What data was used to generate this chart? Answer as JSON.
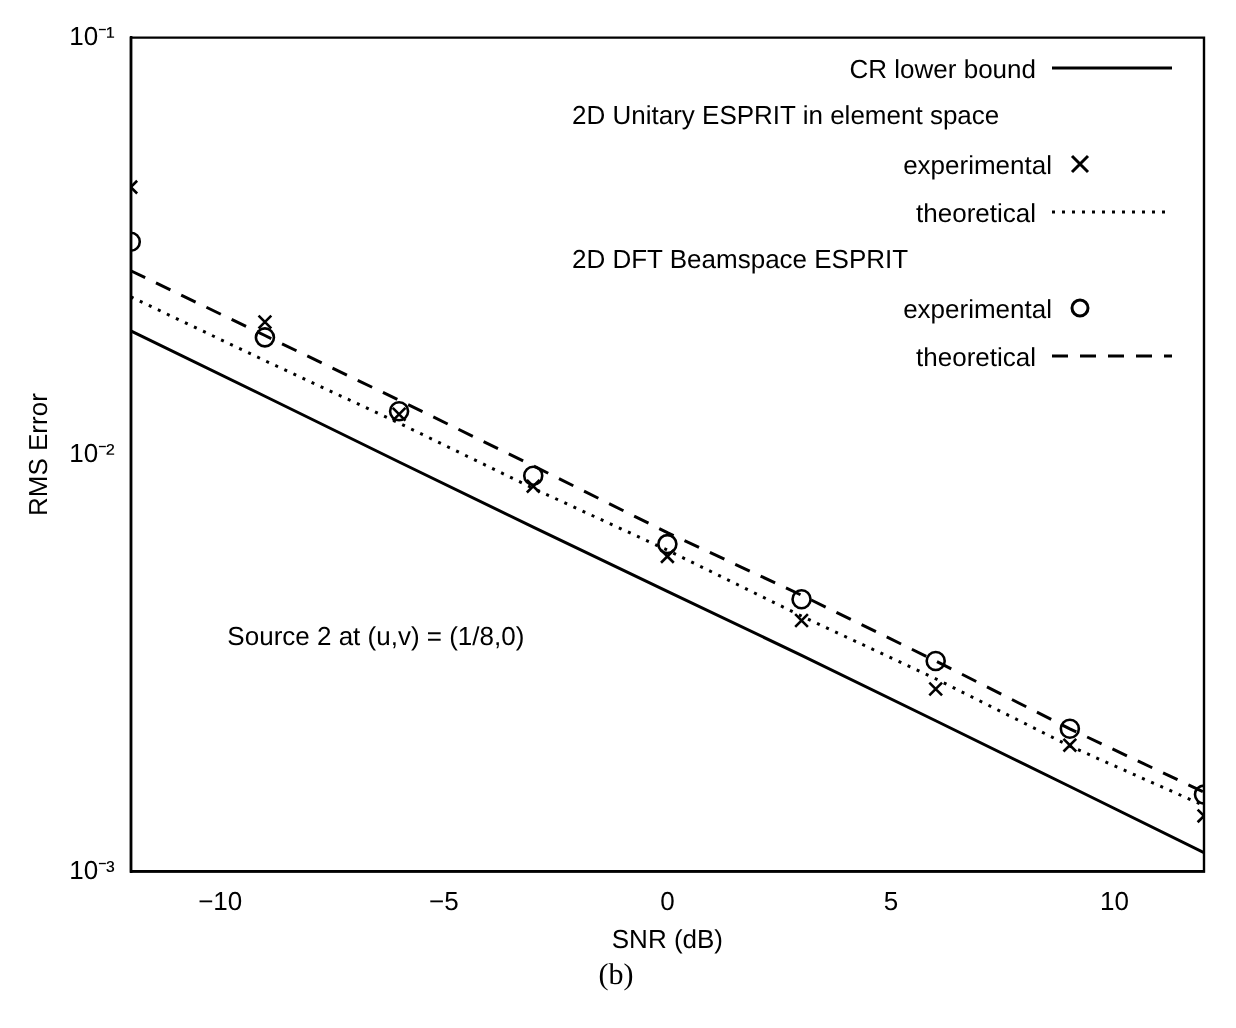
{
  "chart_data": {
    "type": "line",
    "xlabel": "SNR (dB)",
    "ylabel": "RMS Error",
    "log": "y",
    "x": [
      -12,
      -9,
      -6,
      -3,
      0,
      3,
      6,
      9,
      12
    ],
    "xlim": [
      -12,
      12
    ],
    "xticks": [
      -10,
      -5,
      0,
      5,
      10
    ],
    "ylim": [
      0.001,
      0.1
    ],
    "yticks": [
      {
        "value": 0.001,
        "label": "10⁻³"
      },
      {
        "value": 0.01,
        "label": "10⁻²"
      },
      {
        "value": 0.1,
        "label": "10⁻¹"
      }
    ],
    "grid": false,
    "legend": "top right",
    "series": [
      {
        "name": "CR lower bound",
        "color": "#000000",
        "marker": "none",
        "line_style": "solid",
        "values": [
          0.0198,
          0.0138,
          0.0096,
          0.0067,
          0.0047,
          0.0033,
          0.0023,
          0.0016,
          0.00111
        ]
      },
      {
        "name": "experimental",
        "type": "scatter",
        "color": "#000000",
        "marker": "cross",
        "values": [
          0.0438,
          0.0208,
          0.0125,
          0.0084,
          0.0057,
          0.004,
          0.00274,
          0.00201,
          0.00136
        ]
      },
      {
        "name": "theoretical",
        "color": "#000000",
        "marker": "none",
        "line_style": "dotted",
        "values": [
          0.0239,
          0.0168,
          0.0119,
          0.0083,
          0.0059,
          0.0041,
          0.0029,
          0.002,
          0.00144
        ]
      },
      {
        "name": "experimental",
        "type": "scatter",
        "color": "#000000",
        "marker": "circle",
        "values": [
          0.0324,
          0.0191,
          0.0127,
          0.0089,
          0.0061,
          0.0045,
          0.0032,
          0.0022,
          0.00153
        ]
      },
      {
        "name": "theoretical",
        "color": "#000000",
        "marker": "none",
        "line_style": "dashed",
        "values": [
          0.0276,
          0.0193,
          0.0135,
          0.0094,
          0.0065,
          0.0046,
          0.0032,
          0.0022,
          0.00155
        ]
      }
    ],
    "annotations": [
      "2D Unitary ESPRIT in element space",
      "2D DFT Beamspace ESPRIT",
      "Source 2 at (u,v) = (1/8,0)",
      "(b)"
    ]
  }
}
